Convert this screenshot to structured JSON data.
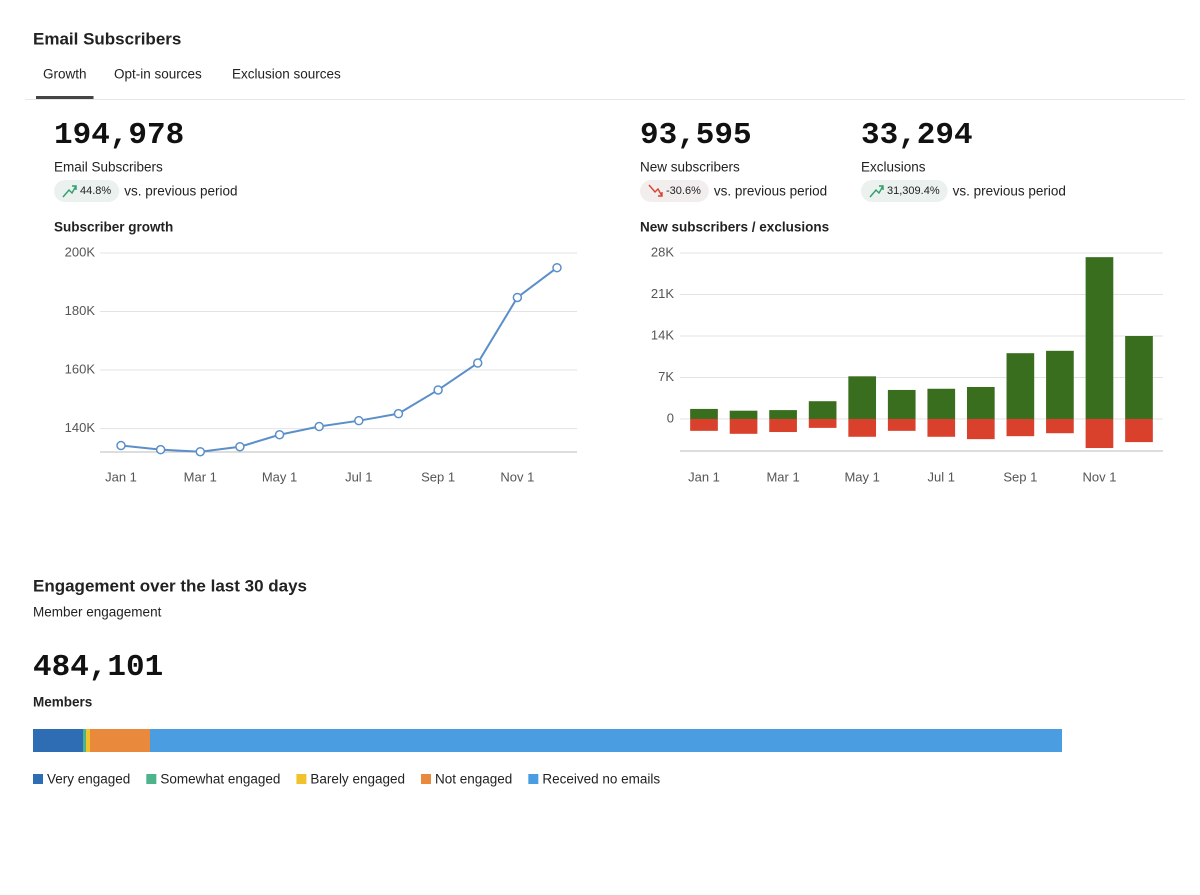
{
  "header": {
    "title": "Email Subscribers"
  },
  "tabs": {
    "items": [
      "Growth",
      "Opt-in sources",
      "Exclusion sources"
    ],
    "active": 0
  },
  "metrics": [
    {
      "value": "194,978",
      "label": "Email Subscribers",
      "change": "44.8%",
      "trend": "up",
      "comparison": "vs. previous period"
    },
    {
      "value": "93,595",
      "label": "New subscribers",
      "change": "-30.6%",
      "trend": "down",
      "comparison": "vs. previous period"
    },
    {
      "value": "33,294",
      "label": "Exclusions",
      "change": "31,309.4%",
      "trend": "up",
      "comparison": "vs. previous period"
    }
  ],
  "chart_data": [
    {
      "type": "line",
      "title": "Subscriber growth",
      "categories": [
        "Jan 1",
        null,
        "Mar 1",
        null,
        "May 1",
        null,
        "Jul 1",
        null,
        "Sep 1",
        null,
        "Nov 1",
        null
      ],
      "series": [
        {
          "color": "#5b8fc9",
          "values": [
            134200,
            132800,
            132100,
            133800,
            137900,
            140700,
            142700,
            145100,
            153200,
            162400,
            184800,
            194978
          ]
        }
      ],
      "ylim": [
        132000,
        200000
      ],
      "yticks": [
        {
          "value": 140000,
          "label": "140K"
        },
        {
          "value": 160000,
          "label": "160K"
        },
        {
          "value": 180000,
          "label": "180K"
        },
        {
          "value": 200000,
          "label": "200K"
        }
      ],
      "grid": true
    },
    {
      "type": "bar",
      "title": "New subscribers / exclusions",
      "categories": [
        "Jan 1",
        null,
        "Mar 1",
        null,
        "May 1",
        null,
        "Jul 1",
        null,
        "Sep 1",
        null,
        "Nov 1",
        null
      ],
      "series": [
        {
          "color": "#3a6e1f",
          "values": [
            1700,
            1400,
            1500,
            3000,
            7200,
            4900,
            5100,
            5400,
            11100,
            11500,
            27300,
            14000
          ]
        },
        {
          "color": "#d9412c",
          "values": [
            -2000,
            -2500,
            -2200,
            -1500,
            -3000,
            -2000,
            -3000,
            -3400,
            -2900,
            -2400,
            -4900,
            -3900
          ]
        }
      ],
      "ylim": [
        -5400,
        28000
      ],
      "yticks": [
        0,
        {
          "value": 7000,
          "label": "7K"
        },
        {
          "value": 14000,
          "label": "14K"
        },
        {
          "value": 21000,
          "label": "21K"
        },
        {
          "value": 28000,
          "label": "28K"
        }
      ],
      "grid": true
    },
    {
      "type": "stacked-bar",
      "title": "Engagement over the last 30 days",
      "subtitle": "Member engagement",
      "total": "484,101",
      "total_label": "Members",
      "series": [
        {
          "name": "Very engaged",
          "color": "#2e6db4",
          "values": [
            23523
          ]
        },
        {
          "name": "Somewhat engaged",
          "color": "#4db38a",
          "values": [
            1411
          ]
        },
        {
          "name": "Barely engaged",
          "color": "#f2c12e",
          "values": [
            1882
          ]
        },
        {
          "name": "Not engaged",
          "color": "#e8893c",
          "values": [
            28227
          ]
        },
        {
          "name": "Received no emails",
          "color": "#4a9de0",
          "values": [
            429058
          ]
        }
      ]
    }
  ]
}
